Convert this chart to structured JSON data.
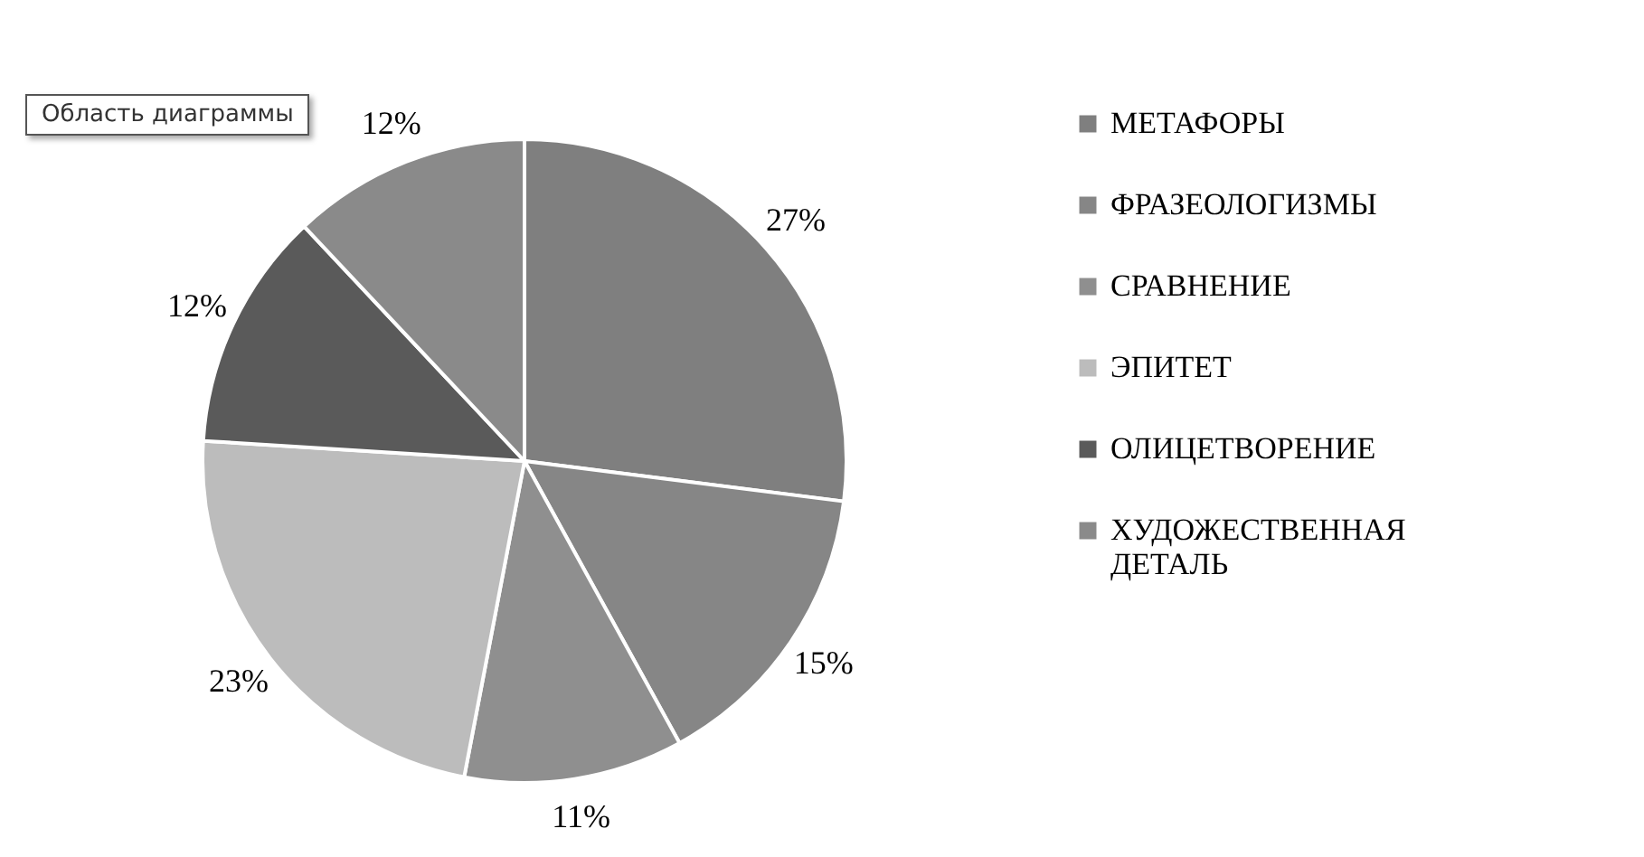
{
  "chart_data": {
    "type": "pie",
    "categories": [
      "МЕТАФОРЫ",
      "ФРАЗЕОЛОГИЗМЫ",
      "СРАВНЕНИЕ",
      "ЭПИТЕТ",
      "ОЛИЦЕТВОРЕНИЕ",
      "ХУДОЖЕСТВЕННАЯ ДЕТАЛЬ"
    ],
    "values": [
      27,
      15,
      11,
      23,
      12,
      12
    ],
    "colors": [
      "#7f7f7f",
      "#868686",
      "#8f8f8f",
      "#bcbcbc",
      "#5a5a5a",
      "#8a8a8a"
    ],
    "value_labels": [
      "27%",
      "15%",
      "11%",
      "23%",
      "12%",
      "12%"
    ],
    "legend": "right",
    "annotations": [
      "Область диаграммы"
    ]
  }
}
